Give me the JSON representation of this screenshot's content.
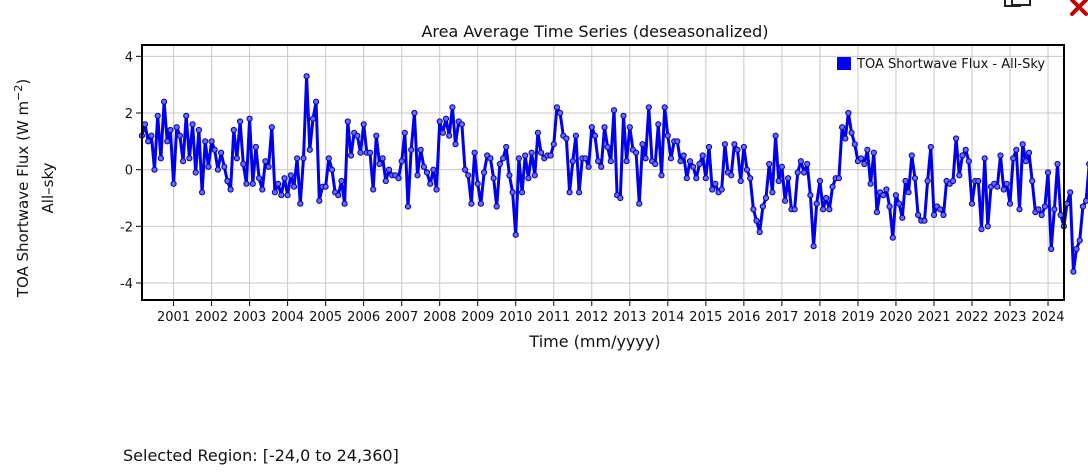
{
  "toolbar": {
    "export_icon": "export-icon",
    "close_icon": "close-icon",
    "close_color": "#c00000"
  },
  "selected_region": {
    "label": "Selected Region:",
    "value": "[-24,0 to 24,360]"
  },
  "chart_data": {
    "type": "line",
    "title": "Area Average Time Series (deseasonalized)",
    "xlabel": "Time (mm/yyyy)",
    "ylabel_line1": "TOA Shortwave Flux (W m",
    "ylabel_sup": "−2",
    "ylabel_close": ")",
    "ylabel_line2": "All–sky",
    "ylim": [
      -4.6,
      4.4
    ],
    "yticks": [
      4,
      2,
      0,
      -2,
      -4
    ],
    "ytick_labels": [
      "4",
      "2",
      "0",
      "-2",
      "-4"
    ],
    "xlim": [
      2000.17,
      2024.42
    ],
    "xticks": [
      2001,
      2002,
      2003,
      2004,
      2005,
      2006,
      2007,
      2008,
      2009,
      2010,
      2011,
      2012,
      2013,
      2014,
      2015,
      2016,
      2017,
      2018,
      2019,
      2020,
      2021,
      2022,
      2023,
      2024
    ],
    "xtick_labels": [
      "2001",
      "2002",
      "2003",
      "2004",
      "2005",
      "2006",
      "2007",
      "2008",
      "2009",
      "2010",
      "2011",
      "2012",
      "2013",
      "2014",
      "2015",
      "2016",
      "2017",
      "2018",
      "2019",
      "2020",
      "2021",
      "2022",
      "2023",
      "2024"
    ],
    "grid": true,
    "legend_position": "top-right",
    "series": [
      {
        "name": "TOA Shortwave Flux - All-Sky",
        "color": "#0000ee",
        "start_year": 2000,
        "start_month": 3,
        "values": [
          1.2,
          1.6,
          1.0,
          1.2,
          0.0,
          1.9,
          0.4,
          2.4,
          1.0,
          1.4,
          -0.5,
          1.5,
          1.2,
          0.3,
          1.9,
          0.4,
          1.6,
          -0.1,
          1.4,
          -0.8,
          1.0,
          0.1,
          1.0,
          0.7,
          0.0,
          0.6,
          0.1,
          -0.4,
          -0.7,
          1.4,
          0.4,
          1.7,
          0.2,
          -0.5,
          1.8,
          -0.5,
          0.8,
          -0.3,
          -0.7,
          0.3,
          0.1,
          1.5,
          -0.8,
          -0.5,
          -0.9,
          -0.3,
          -0.9,
          -0.2,
          -0.6,
          0.4,
          -1.2,
          0.4,
          3.3,
          0.7,
          1.8,
          2.4,
          -1.1,
          -0.6,
          -0.6,
          0.4,
          0.0,
          -0.8,
          -0.9,
          -0.4,
          -1.2,
          1.7,
          0.5,
          1.3,
          1.2,
          0.6,
          1.6,
          0.6,
          0.6,
          -0.7,
          1.2,
          0.2,
          0.4,
          -0.4,
          0.0,
          -0.2,
          -0.2,
          -0.3,
          0.3,
          1.3,
          -1.3,
          0.7,
          2.0,
          -0.2,
          0.7,
          0.1,
          -0.1,
          -0.5,
          0.0,
          -0.7,
          1.7,
          1.3,
          1.8,
          1.2,
          2.2,
          0.9,
          1.7,
          1.6,
          0.0,
          -0.2,
          -1.2,
          0.6,
          -0.5,
          -1.2,
          -0.1,
          0.5,
          0.4,
          -0.3,
          -1.3,
          0.2,
          0.4,
          0.8,
          -0.2,
          -0.8,
          -2.3,
          0.4,
          -0.8,
          0.5,
          -0.3,
          0.6,
          -0.2,
          1.3,
          0.6,
          0.4,
          0.5,
          0.5,
          0.9,
          2.2,
          2.0,
          1.2,
          1.1,
          -0.8,
          0.3,
          1.2,
          -0.8,
          0.4,
          0.4,
          0.1,
          1.5,
          1.2,
          0.3,
          0.1,
          1.5,
          0.8,
          0.3,
          2.1,
          -0.9,
          -1.0,
          1.9,
          0.3,
          1.5,
          0.7,
          0.6,
          -1.2,
          0.9,
          0.4,
          2.2,
          0.3,
          0.2,
          1.6,
          -0.2,
          2.2,
          1.2,
          0.4,
          1.0,
          1.0,
          0.3,
          0.5,
          -0.3,
          0.3,
          0.1,
          -0.3,
          0.2,
          0.5,
          -0.3,
          0.8,
          -0.7,
          -0.5,
          -0.8,
          -0.7,
          0.9,
          -0.1,
          -0.2,
          0.9,
          0.7,
          -0.4,
          0.8,
          0.0,
          -0.3,
          -1.4,
          -1.8,
          -2.2,
          -1.3,
          -1.0,
          0.2,
          -0.8,
          1.2,
          -0.4,
          0.1,
          -1.1,
          -0.3,
          -1.4,
          -1.4,
          -0.1,
          0.3,
          -0.1,
          0.2,
          -0.9,
          -2.7,
          -1.2,
          -0.4,
          -1.4,
          -1.0,
          -1.4,
          -0.6,
          -0.3,
          -0.3,
          1.5,
          1.1,
          2.0,
          1.3,
          0.9,
          0.3,
          0.4,
          0.2,
          0.7,
          -0.5,
          0.6,
          -1.5,
          -0.8,
          -0.9,
          -0.7,
          -1.3,
          -2.4,
          -0.9,
          -1.2,
          -1.7,
          -0.4,
          -0.8,
          0.5,
          -0.3,
          -1.6,
          -1.8,
          -1.8,
          -0.4,
          0.8,
          -1.6,
          -1.3,
          -1.4,
          -1.6,
          -0.4,
          -0.5,
          -0.4,
          1.1,
          -0.2,
          0.5,
          0.7,
          0.3,
          -1.2,
          -0.4,
          -0.4,
          -2.1,
          0.4,
          -2.0,
          -0.6,
          -0.5,
          -0.6,
          0.5,
          -0.7,
          -0.5,
          -1.2,
          0.4,
          0.7,
          -1.4,
          0.9,
          0.3,
          0.6,
          -0.4,
          -1.5,
          -1.4,
          -1.6,
          -1.3,
          -0.1,
          -2.8,
          -1.4,
          0.2,
          -1.6,
          -2.0,
          -1.2,
          -0.8,
          -3.6,
          -2.8,
          -2.5,
          -1.3,
          -1.1,
          0.2,
          -1.0
        ]
      }
    ]
  }
}
